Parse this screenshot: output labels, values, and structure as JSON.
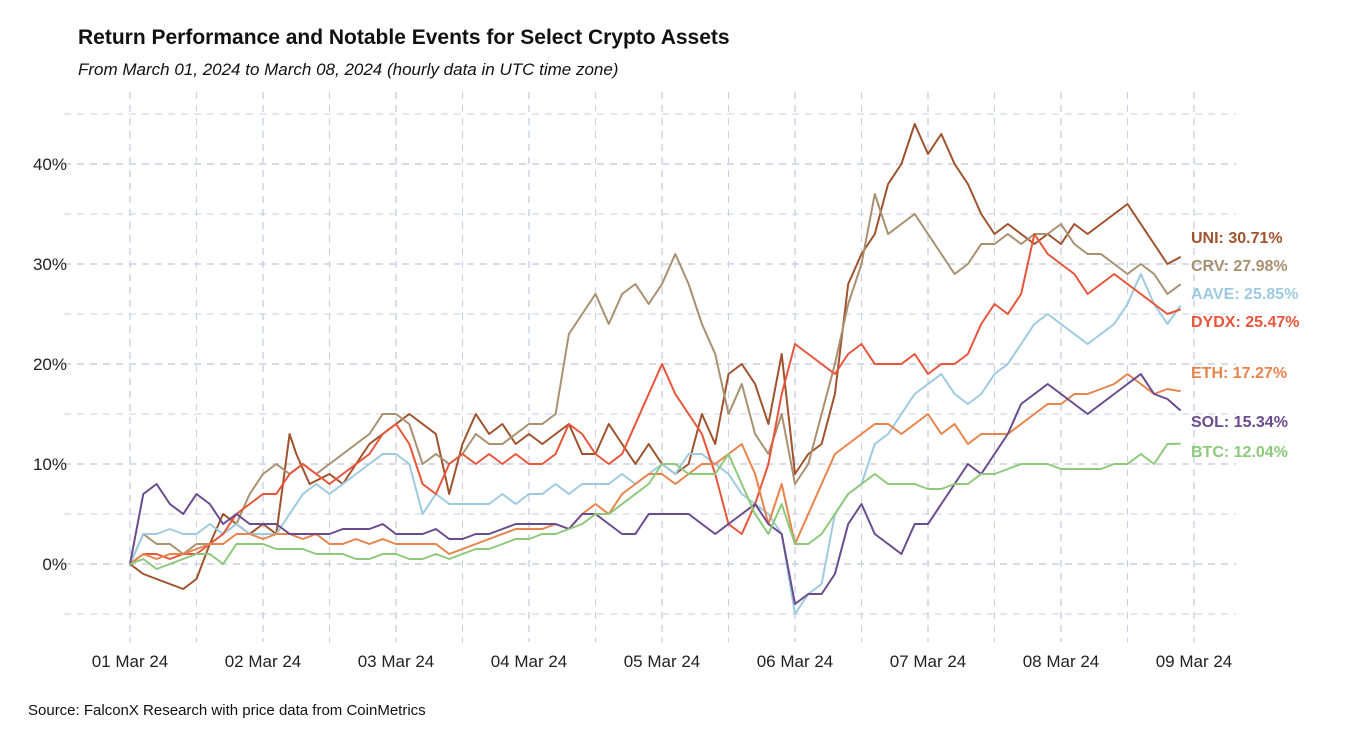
{
  "chart_data": {
    "type": "line",
    "title": "Return Performance and Notable Events for Select Crypto Assets",
    "subtitle": "From March 01, 2024 to March 08, 2024 (hourly data in UTC time zone)",
    "source": "Source: FalconX Research with price data from CoinMetrics",
    "xlabel": "",
    "ylabel": "",
    "x_ticks": [
      "01 Mar 24",
      "02 Mar 24",
      "03 Mar 24",
      "04 Mar 24",
      "05 Mar 24",
      "06 Mar 24",
      "07 Mar 24",
      "08 Mar 24",
      "09 Mar 24"
    ],
    "y_ticks": [
      "0%",
      "10%",
      "20%",
      "30%",
      "40%"
    ],
    "y_tick_values": [
      0,
      10,
      20,
      30,
      40
    ],
    "xlim": [
      0,
      8.5
    ],
    "ylim": [
      -8,
      48
    ],
    "grid": true,
    "x_unit": "days since 01 Mar 24",
    "series": [
      {
        "name": "UNI",
        "color": "#A0522D",
        "end_label": "UNI: 30.71%",
        "x": [
          0,
          0.1,
          0.2,
          0.3,
          0.4,
          0.5,
          0.6,
          0.7,
          0.8,
          0.9,
          1.0,
          1.1,
          1.2,
          1.25,
          1.35,
          1.5,
          1.6,
          1.7,
          1.8,
          1.9,
          2.0,
          2.1,
          2.2,
          2.3,
          2.4,
          2.5,
          2.6,
          2.7,
          2.8,
          2.9,
          3.0,
          3.1,
          3.2,
          3.3,
          3.4,
          3.5,
          3.6,
          3.7,
          3.8,
          3.9,
          4.0,
          4.1,
          4.2,
          4.3,
          4.4,
          4.5,
          4.6,
          4.7,
          4.8,
          4.9,
          5.0,
          5.1,
          5.2,
          5.3,
          5.4,
          5.5,
          5.6,
          5.7,
          5.8,
          5.9,
          6.0,
          6.1,
          6.2,
          6.3,
          6.4,
          6.5,
          6.6,
          6.7,
          6.8,
          6.9,
          7.0,
          7.1,
          7.2,
          7.3,
          7.4,
          7.5,
          7.6,
          7.7,
          7.8,
          7.9
        ],
        "y": [
          0,
          -1,
          -1.5,
          -2,
          -2.5,
          -1.5,
          2,
          5,
          4,
          3,
          4,
          3,
          13,
          11,
          8,
          9,
          8,
          10,
          12,
          13,
          14,
          15,
          14,
          13,
          7,
          12,
          15,
          13,
          14,
          12,
          13,
          12,
          13,
          14,
          11,
          11,
          14,
          12,
          10,
          12,
          10,
          9,
          10,
          15,
          12,
          19,
          20,
          18,
          14,
          21,
          9,
          11,
          12,
          17,
          28,
          31,
          33,
          38,
          40,
          44,
          41,
          43,
          40,
          38,
          35,
          33,
          34,
          33,
          32,
          33,
          32,
          34,
          33,
          34,
          35,
          36,
          34,
          32,
          30,
          30.71
        ]
      },
      {
        "name": "CRV",
        "color": "#A89070",
        "end_label": "CRV: 27.98%",
        "x": [
          0,
          0.1,
          0.2,
          0.3,
          0.4,
          0.5,
          0.6,
          0.7,
          0.8,
          0.9,
          1.0,
          1.1,
          1.2,
          1.3,
          1.4,
          1.5,
          1.6,
          1.7,
          1.8,
          1.9,
          2.0,
          2.1,
          2.2,
          2.3,
          2.4,
          2.5,
          2.6,
          2.7,
          2.8,
          2.9,
          3.0,
          3.1,
          3.2,
          3.3,
          3.4,
          3.5,
          3.6,
          3.7,
          3.8,
          3.9,
          4.0,
          4.1,
          4.2,
          4.3,
          4.4,
          4.5,
          4.6,
          4.7,
          4.8,
          4.9,
          5.0,
          5.1,
          5.2,
          5.3,
          5.4,
          5.5,
          5.6,
          5.7,
          5.8,
          5.9,
          6.0,
          6.1,
          6.2,
          6.3,
          6.4,
          6.5,
          6.6,
          6.7,
          6.8,
          6.9,
          7.0,
          7.1,
          7.2,
          7.3,
          7.4,
          7.5,
          7.6,
          7.7,
          7.8,
          7.9
        ],
        "y": [
          0,
          3,
          2,
          2,
          1,
          2,
          2,
          3,
          4,
          7,
          9,
          10,
          9,
          10,
          9,
          10,
          11,
          12,
          13,
          15,
          15,
          14,
          10,
          11,
          10,
          11,
          13,
          12,
          12,
          13,
          14,
          14,
          15,
          23,
          25,
          27,
          24,
          27,
          28,
          26,
          28,
          31,
          28,
          24,
          21,
          15,
          18,
          13,
          11,
          15,
          8,
          10,
          15,
          20,
          26,
          30,
          37,
          33,
          34,
          35,
          33,
          31,
          29,
          30,
          32,
          32,
          33,
          32,
          33,
          33,
          34,
          32,
          31,
          31,
          30,
          29,
          30,
          29,
          27,
          27.98
        ]
      },
      {
        "name": "AAVE",
        "color": "#9ECAE1",
        "end_label": "AAVE: 25.85%",
        "x": [
          0,
          0.1,
          0.2,
          0.3,
          0.4,
          0.5,
          0.6,
          0.7,
          0.8,
          0.9,
          1.0,
          1.1,
          1.2,
          1.3,
          1.4,
          1.5,
          1.6,
          1.7,
          1.8,
          1.9,
          2.0,
          2.1,
          2.2,
          2.3,
          2.4,
          2.5,
          2.6,
          2.7,
          2.8,
          2.9,
          3.0,
          3.1,
          3.2,
          3.3,
          3.4,
          3.5,
          3.6,
          3.7,
          3.8,
          3.9,
          4.0,
          4.1,
          4.2,
          4.3,
          4.4,
          4.5,
          4.6,
          4.7,
          4.8,
          4.9,
          5.0,
          5.1,
          5.2,
          5.3,
          5.4,
          5.5,
          5.6,
          5.7,
          5.8,
          5.9,
          6.0,
          6.1,
          6.2,
          6.3,
          6.4,
          6.5,
          6.6,
          6.7,
          6.8,
          6.9,
          7.0,
          7.1,
          7.2,
          7.3,
          7.4,
          7.5,
          7.6,
          7.7,
          7.8,
          7.9
        ],
        "y": [
          0,
          3,
          3,
          3.5,
          3,
          3,
          4,
          3,
          4,
          3,
          3,
          3,
          5,
          7,
          8,
          7,
          8,
          9,
          10,
          11,
          11,
          10,
          5,
          7,
          6,
          6,
          6,
          6,
          7,
          6,
          7,
          7,
          8,
          7,
          8,
          8,
          8,
          9,
          8,
          9,
          10,
          9,
          11,
          11,
          10,
          9,
          7,
          6,
          5,
          3,
          -5,
          -3,
          -2,
          5,
          7,
          8,
          12,
          13,
          15,
          17,
          18,
          19,
          17,
          16,
          17,
          19,
          20,
          22,
          24,
          25,
          24,
          23,
          22,
          23,
          24,
          26,
          29,
          26,
          24,
          25.85
        ]
      },
      {
        "name": "DYDX",
        "color": "#E8553A",
        "end_label": "DYDX: 25.47%",
        "x": [
          0,
          0.1,
          0.2,
          0.3,
          0.4,
          0.5,
          0.6,
          0.7,
          0.8,
          0.9,
          1.0,
          1.1,
          1.2,
          1.3,
          1.4,
          1.5,
          1.6,
          1.7,
          1.8,
          1.9,
          2.0,
          2.1,
          2.2,
          2.3,
          2.4,
          2.5,
          2.6,
          2.7,
          2.8,
          2.9,
          3.0,
          3.1,
          3.2,
          3.3,
          3.4,
          3.5,
          3.6,
          3.7,
          3.8,
          3.9,
          4.0,
          4.1,
          4.2,
          4.3,
          4.4,
          4.5,
          4.6,
          4.7,
          4.8,
          4.9,
          5.0,
          5.1,
          5.2,
          5.3,
          5.4,
          5.5,
          5.6,
          5.7,
          5.8,
          5.9,
          6.0,
          6.1,
          6.2,
          6.3,
          6.4,
          6.5,
          6.6,
          6.7,
          6.8,
          6.9,
          7.0,
          7.1,
          7.2,
          7.3,
          7.4,
          7.5,
          7.6,
          7.7,
          7.8,
          7.9
        ],
        "y": [
          0,
          1,
          1,
          0.5,
          1,
          1,
          2,
          3,
          5,
          6,
          7,
          7,
          9,
          10,
          9,
          8,
          9,
          10,
          11,
          13,
          14,
          12,
          8,
          7,
          10,
          11,
          10,
          11,
          10,
          11,
          10,
          10,
          11,
          14,
          13,
          11,
          10,
          11,
          14,
          17,
          20,
          17,
          15,
          13,
          9,
          4,
          3,
          6,
          10,
          17,
          22,
          21,
          20,
          19,
          21,
          22,
          20,
          20,
          20,
          21,
          19,
          20,
          20,
          21,
          24,
          26,
          25,
          27,
          33,
          31,
          30,
          29,
          27,
          28,
          29,
          28,
          27,
          26,
          25,
          25.47
        ]
      },
      {
        "name": "ETH",
        "color": "#E8834A",
        "end_label": "ETH: 17.27%",
        "x": [
          0,
          0.1,
          0.2,
          0.3,
          0.4,
          0.5,
          0.6,
          0.7,
          0.8,
          0.9,
          1.0,
          1.1,
          1.2,
          1.3,
          1.4,
          1.5,
          1.6,
          1.7,
          1.8,
          1.9,
          2.0,
          2.1,
          2.2,
          2.3,
          2.4,
          2.5,
          2.6,
          2.7,
          2.8,
          2.9,
          3.0,
          3.1,
          3.2,
          3.3,
          3.4,
          3.5,
          3.6,
          3.7,
          3.8,
          3.9,
          4.0,
          4.1,
          4.2,
          4.3,
          4.4,
          4.5,
          4.6,
          4.7,
          4.8,
          4.9,
          5.0,
          5.1,
          5.2,
          5.3,
          5.4,
          5.5,
          5.6,
          5.7,
          5.8,
          5.9,
          6.0,
          6.1,
          6.2,
          6.3,
          6.4,
          6.5,
          6.6,
          6.7,
          6.8,
          6.9,
          7.0,
          7.1,
          7.2,
          7.3,
          7.4,
          7.5,
          7.6,
          7.7,
          7.8,
          7.9
        ],
        "y": [
          0,
          1,
          0.5,
          1,
          1,
          1.5,
          2,
          2,
          3,
          3,
          2.5,
          3,
          3,
          2.5,
          3,
          2,
          2,
          2.5,
          2,
          2.5,
          2,
          2,
          2,
          2,
          1,
          1.5,
          2,
          2.5,
          3,
          3.5,
          3.5,
          3.5,
          4,
          3.5,
          5,
          6,
          5,
          7,
          8,
          9,
          9,
          8,
          9,
          10,
          10,
          11,
          12,
          9,
          4,
          8,
          2,
          5,
          8,
          11,
          12,
          13,
          14,
          14,
          13,
          14,
          15,
          13,
          14,
          12,
          13,
          13,
          13,
          14,
          15,
          16,
          16,
          17,
          17,
          17.5,
          18,
          19,
          18,
          17,
          17.5,
          17.27
        ]
      },
      {
        "name": "SOL",
        "color": "#6A4B8E",
        "end_label": "SOL: 15.34%",
        "x": [
          0,
          0.1,
          0.2,
          0.3,
          0.4,
          0.5,
          0.6,
          0.7,
          0.8,
          0.9,
          1.0,
          1.1,
          1.2,
          1.3,
          1.4,
          1.5,
          1.6,
          1.7,
          1.8,
          1.9,
          2.0,
          2.1,
          2.2,
          2.3,
          2.4,
          2.5,
          2.6,
          2.7,
          2.8,
          2.9,
          3.0,
          3.1,
          3.2,
          3.3,
          3.4,
          3.5,
          3.6,
          3.7,
          3.8,
          3.9,
          4.0,
          4.1,
          4.2,
          4.3,
          4.4,
          4.5,
          4.6,
          4.7,
          4.8,
          4.9,
          5.0,
          5.1,
          5.2,
          5.3,
          5.4,
          5.5,
          5.6,
          5.7,
          5.8,
          5.9,
          6.0,
          6.1,
          6.2,
          6.3,
          6.4,
          6.5,
          6.6,
          6.7,
          6.8,
          6.9,
          7.0,
          7.1,
          7.2,
          7.3,
          7.4,
          7.5,
          7.6,
          7.7,
          7.8,
          7.9
        ],
        "y": [
          0,
          7,
          8,
          6,
          5,
          7,
          6,
          4,
          5,
          4,
          4,
          4,
          3,
          3,
          3,
          3,
          3.5,
          3.5,
          3.5,
          4,
          3,
          3,
          3,
          3.5,
          2.5,
          2.5,
          3,
          3,
          3.5,
          4,
          4,
          4,
          4,
          3.5,
          5,
          5,
          4,
          3,
          3,
          5,
          5,
          5,
          5,
          4,
          3,
          4,
          5,
          6,
          4,
          3,
          -4,
          -3,
          -3,
          -1,
          4,
          6,
          3,
          2,
          1,
          4,
          4,
          6,
          8,
          10,
          9,
          11,
          13,
          16,
          17,
          18,
          17,
          16,
          15,
          16,
          17,
          18,
          19,
          17,
          16.5,
          15.34
        ]
      },
      {
        "name": "BTC",
        "color": "#8CC97A",
        "end_label": "BTC: 12.04%",
        "x": [
          0,
          0.1,
          0.2,
          0.3,
          0.4,
          0.5,
          0.6,
          0.7,
          0.8,
          0.9,
          1.0,
          1.1,
          1.2,
          1.3,
          1.4,
          1.5,
          1.6,
          1.7,
          1.8,
          1.9,
          2.0,
          2.1,
          2.2,
          2.3,
          2.4,
          2.5,
          2.6,
          2.7,
          2.8,
          2.9,
          3.0,
          3.1,
          3.2,
          3.3,
          3.4,
          3.5,
          3.6,
          3.7,
          3.8,
          3.9,
          4.0,
          4.1,
          4.2,
          4.3,
          4.4,
          4.5,
          4.6,
          4.7,
          4.8,
          4.9,
          5.0,
          5.1,
          5.2,
          5.3,
          5.4,
          5.5,
          5.6,
          5.7,
          5.8,
          5.9,
          6.0,
          6.1,
          6.2,
          6.3,
          6.4,
          6.5,
          6.6,
          6.7,
          6.8,
          6.9,
          7.0,
          7.1,
          7.2,
          7.3,
          7.4,
          7.5,
          7.6,
          7.7,
          7.8,
          7.9
        ],
        "y": [
          0,
          0.5,
          -0.5,
          0,
          0.5,
          1,
          1,
          0,
          2,
          2,
          2,
          1.5,
          1.5,
          1.5,
          1,
          1,
          1,
          0.5,
          0.5,
          1,
          1,
          0.5,
          0.5,
          1,
          0.5,
          1,
          1.5,
          1.5,
          2,
          2.5,
          2.5,
          3,
          3,
          3.5,
          4,
          5,
          5,
          6,
          7,
          8,
          10,
          10,
          9,
          9,
          9,
          11,
          8,
          5,
          3,
          6,
          2,
          2,
          3,
          5,
          7,
          8,
          9,
          8,
          8,
          8,
          7.5,
          7.5,
          8,
          8,
          9,
          9,
          9.5,
          10,
          10,
          10,
          9.5,
          9.5,
          9.5,
          9.5,
          10,
          10,
          11,
          10,
          12,
          12.04
        ]
      }
    ]
  }
}
